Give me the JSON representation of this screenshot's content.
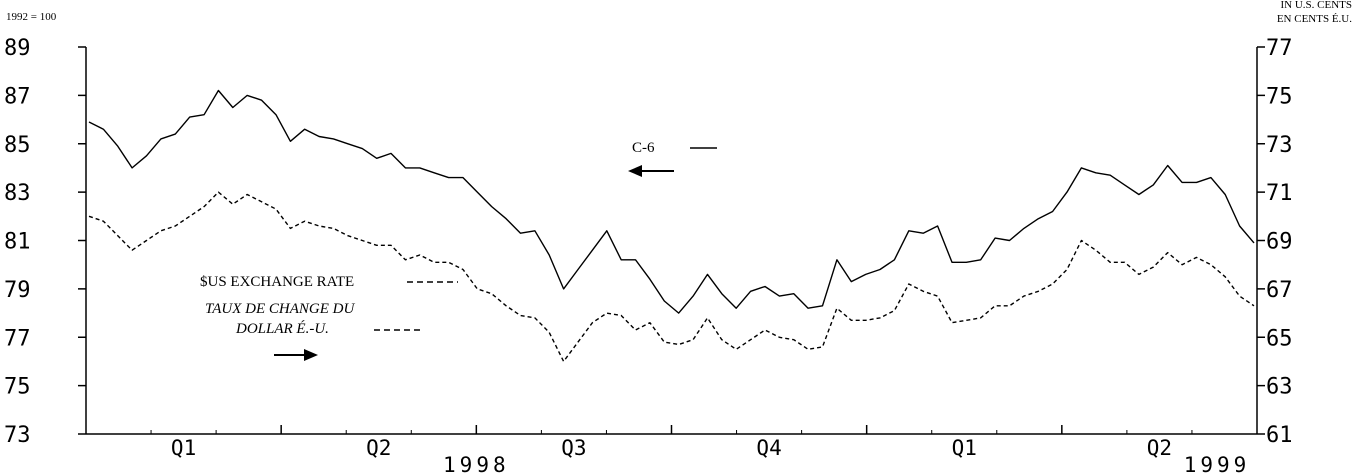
{
  "chart_data": {
    "type": "line",
    "top_left_label": "1992 = 100",
    "top_right_label_1": "IN U.S. CENTS",
    "top_right_label_2": "EN CENTS É.U.",
    "left_axis": {
      "ticks": [
        "89",
        "87",
        "85",
        "83",
        "81",
        "79",
        "77",
        "75",
        "73"
      ],
      "range": [
        73,
        89
      ]
    },
    "right_axis": {
      "ticks": [
        "77",
        "75",
        "73",
        "71",
        "69",
        "67",
        "65",
        "63",
        "61"
      ],
      "range": [
        61,
        77
      ]
    },
    "x_axis": {
      "quarters": [
        "Q1",
        "Q2",
        "Q3",
        "Q4",
        "Q1",
        "Q2"
      ],
      "years": [
        "1998",
        "1999"
      ]
    },
    "legend": {
      "c6_label": "C-6",
      "exchange_label_en": "$US EXCHANGE RATE",
      "exchange_label_fr_1": "TAUX DE CHANGE DU",
      "exchange_label_fr_2": "DOLLAR É.-U."
    },
    "series": [
      {
        "name": "C-6",
        "axis": "left",
        "style": "solid",
        "values": [
          85.9,
          85.6,
          84.9,
          84.0,
          84.5,
          85.2,
          85.4,
          86.1,
          86.2,
          87.2,
          86.5,
          87.0,
          86.8,
          86.2,
          85.1,
          85.6,
          85.3,
          85.2,
          85.0,
          84.8,
          84.4,
          84.6,
          84.0,
          84.0,
          83.8,
          83.6,
          83.6,
          83.0,
          82.4,
          81.9,
          81.3,
          81.4,
          80.4,
          79.0,
          79.8,
          80.6,
          81.4,
          80.2,
          80.2,
          79.4,
          78.5,
          78.0,
          78.7,
          79.6,
          78.8,
          78.2,
          78.9,
          79.1,
          78.7,
          78.8,
          78.2,
          78.3,
          80.2,
          79.3,
          79.6,
          79.8,
          80.2,
          81.4,
          81.3,
          81.6,
          80.1,
          80.1,
          80.2,
          81.1,
          81.0,
          81.5,
          81.9,
          82.2,
          83.0,
          84.0,
          83.8,
          83.7,
          83.3,
          82.9,
          83.3,
          84.1,
          83.4,
          83.4,
          83.6,
          82.9,
          81.6,
          80.9
        ]
      },
      {
        "name": "$US EXCHANGE RATE",
        "axis": "right",
        "style": "dashed",
        "values": [
          70.0,
          69.8,
          69.2,
          68.6,
          69.0,
          69.4,
          69.6,
          70.0,
          70.4,
          71.0,
          70.5,
          70.9,
          70.6,
          70.3,
          69.5,
          69.8,
          69.6,
          69.5,
          69.2,
          69.0,
          68.8,
          68.8,
          68.2,
          68.4,
          68.1,
          68.1,
          67.8,
          67.0,
          66.8,
          66.3,
          65.9,
          65.8,
          65.2,
          64.0,
          64.8,
          65.6,
          66.0,
          65.9,
          65.3,
          65.6,
          64.8,
          64.7,
          64.9,
          65.8,
          64.9,
          64.5,
          64.9,
          65.3,
          65.0,
          64.9,
          64.5,
          64.6,
          66.2,
          65.7,
          65.7,
          65.8,
          66.1,
          67.2,
          66.9,
          66.7,
          65.6,
          65.7,
          65.8,
          66.3,
          66.3,
          66.7,
          66.9,
          67.2,
          67.8,
          69.0,
          68.6,
          68.1,
          68.1,
          67.6,
          67.9,
          68.5,
          68.0,
          68.3,
          68.0,
          67.5,
          66.7,
          66.3
        ]
      }
    ]
  }
}
